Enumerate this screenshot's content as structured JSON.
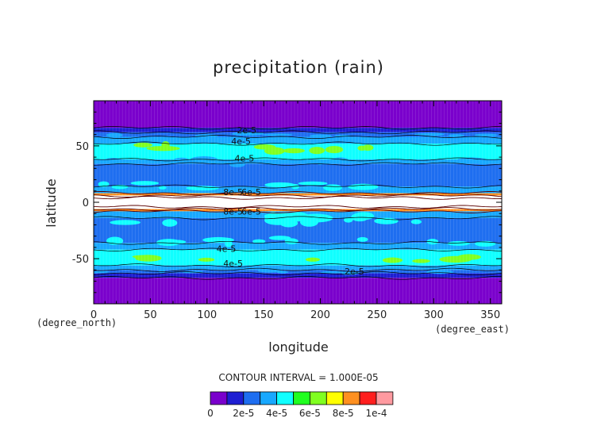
{
  "chart_data": {
    "type": "heatmap",
    "title": "precipitation (rain)",
    "xlabel": "longitude",
    "ylabel": "latitude",
    "x_unit": "(degree_east)",
    "y_unit": "(degree_north)",
    "xlim": [
      0,
      360
    ],
    "ylim": [
      -90,
      90
    ],
    "x_ticks": [
      0,
      50,
      100,
      150,
      200,
      250,
      300,
      350
    ],
    "y_ticks": [
      -50,
      0,
      50
    ],
    "contour_interval_text": "CONTOUR INTERVAL = 1.000E-05",
    "colorbar": {
      "levels": [
        0,
        1e-05,
        2e-05,
        3e-05,
        4e-05,
        5e-05,
        6e-05,
        7e-05,
        8e-05,
        9e-05,
        0.0001
      ],
      "colors": [
        "#7a00cc",
        "#1e1ed2",
        "#1e6ef0",
        "#18a8ff",
        "#10ffff",
        "#20ff20",
        "#80ff20",
        "#ffff00",
        "#ff9020",
        "#ff1e1e",
        "#ff9aa0"
      ],
      "tick_labels": [
        "0",
        "2e-5",
        "4e-5",
        "6e-5",
        "8e-5",
        "1e-4"
      ]
    },
    "zonal_bands": [
      {
        "lat": [
          66,
          90
        ],
        "value": 5e-06
      },
      {
        "lat": [
          62,
          66
        ],
        "value": 1.5e-05
      },
      {
        "lat": [
          58,
          62
        ],
        "value": 2.5e-05
      },
      {
        "lat": [
          52,
          58
        ],
        "value": 3.5e-05
      },
      {
        "lat": [
          38,
          52
        ],
        "value": 4.5e-05
      },
      {
        "lat": [
          34,
          38
        ],
        "value": 3.5e-05
      },
      {
        "lat": [
          14,
          34
        ],
        "value": 2.5e-05
      },
      {
        "lat": [
          8,
          14
        ],
        "value": 3.5e-05
      },
      {
        "lat": [
          6,
          8
        ],
        "value": 8e-05
      },
      {
        "lat": [
          4,
          6
        ],
        "value": 0.00011
      },
      {
        "lat": [
          -4,
          4
        ],
        "value": 0.00012
      },
      {
        "lat": [
          -6,
          -4
        ],
        "value": 0.00011
      },
      {
        "lat": [
          -8,
          -6
        ],
        "value": 8e-05
      },
      {
        "lat": [
          -14,
          -8
        ],
        "value": 3.5e-05
      },
      {
        "lat": [
          -36,
          -14
        ],
        "value": 2.5e-05
      },
      {
        "lat": [
          -42,
          -36
        ],
        "value": 3.5e-05
      },
      {
        "lat": [
          -56,
          -42
        ],
        "value": 4.5e-05
      },
      {
        "lat": [
          -60,
          -56
        ],
        "value": 3.5e-05
      },
      {
        "lat": [
          -63,
          -60
        ],
        "value": 2.5e-05
      },
      {
        "lat": [
          -67,
          -63
        ],
        "value": 1.5e-05
      },
      {
        "lat": [
          -90,
          -67
        ],
        "value": 5e-06
      }
    ],
    "contour_labels": [
      {
        "text": "2e-5",
        "lon": 135,
        "lat": 64
      },
      {
        "text": "4e-5",
        "lon": 130,
        "lat": 54
      },
      {
        "text": "4e-5",
        "lon": 133,
        "lat": 39
      },
      {
        "text": "8e-5",
        "lon": 123,
        "lat": 9
      },
      {
        "text": "6e-5",
        "lon": 139,
        "lat": 9
      },
      {
        "text": "8e-5",
        "lon": 123,
        "lat": -8
      },
      {
        "text": "6e-5",
        "lon": 139,
        "lat": -8
      },
      {
        "text": "4e-5",
        "lon": 117,
        "lat": -41
      },
      {
        "text": "4e-5",
        "lon": 123,
        "lat": -54
      },
      {
        "text": "2e-5",
        "lon": 230,
        "lat": -61
      }
    ]
  }
}
